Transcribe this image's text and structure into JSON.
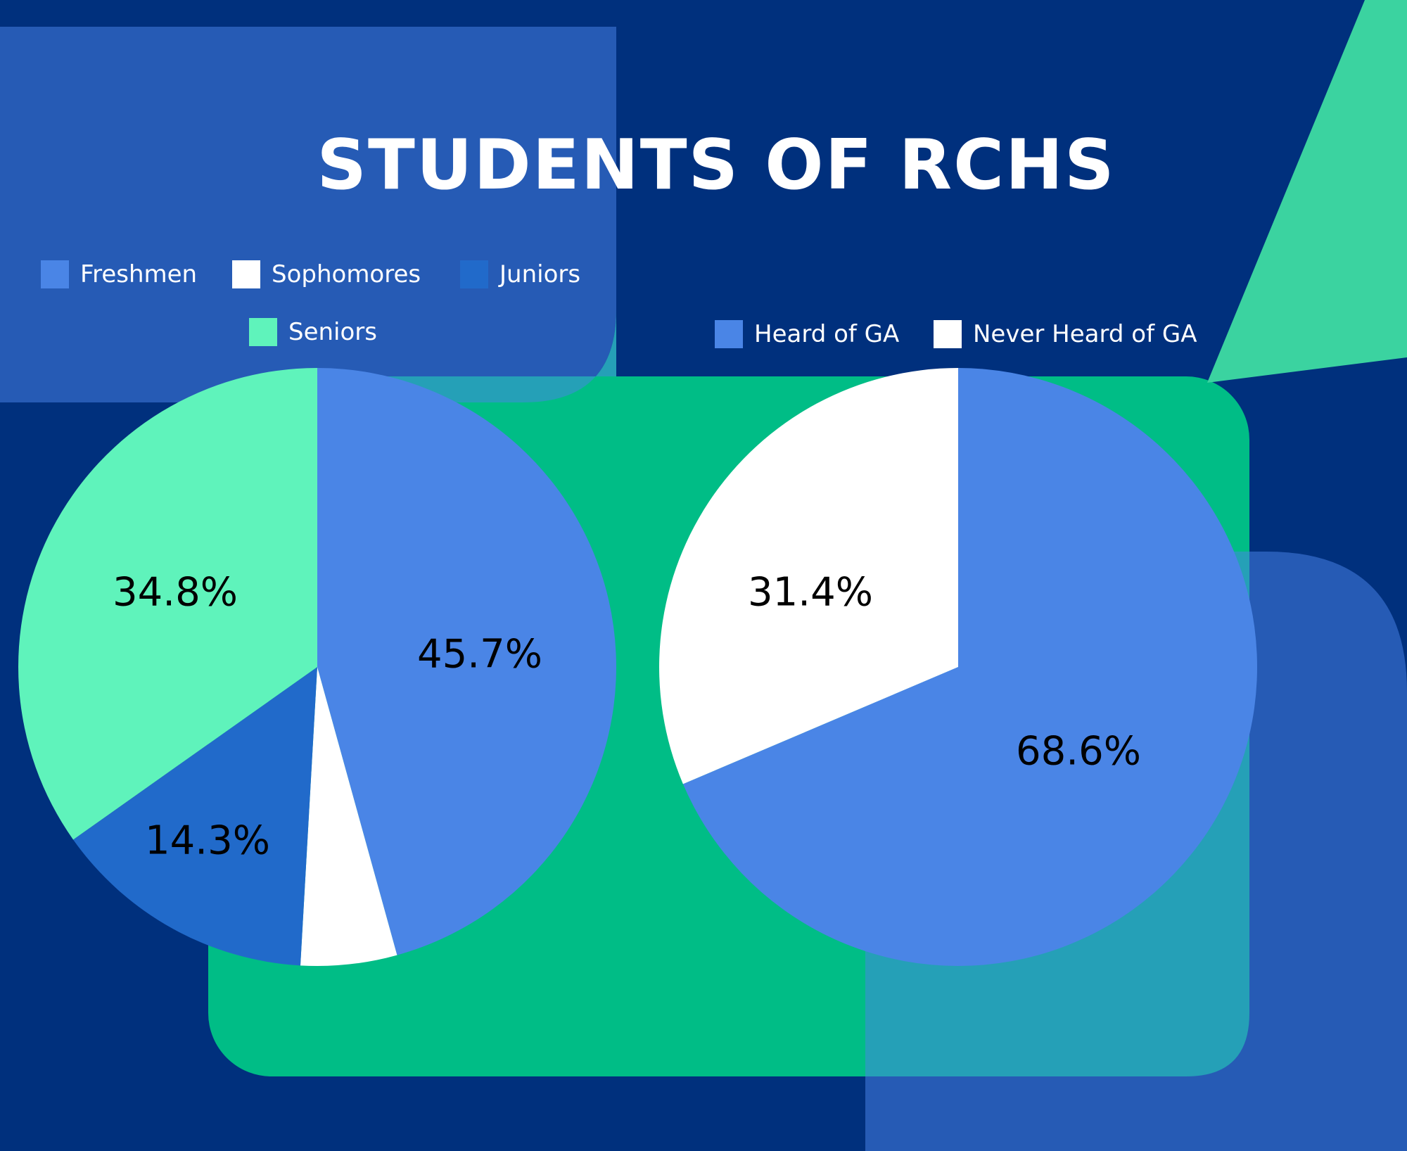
{
  "title": "STUDENTS OF RCHS",
  "colors": {
    "background": "#00307d",
    "panel_blue": "#265bb5",
    "panel_green": "#00bd86",
    "accent_mint": "#3bd3a0",
    "freshmen": "#4a85e6",
    "sophomores": "#ffffff",
    "juniors": "#216aca",
    "seniors": "#5ff3bb",
    "heard": "#4a85e6",
    "never_heard": "#ffffff"
  },
  "chart_data": [
    {
      "type": "pie",
      "legend": [
        "Freshmen",
        "Sophomores",
        "Juniors",
        "Seniors"
      ],
      "slices": [
        {
          "name": "Freshmen",
          "value": 45.7,
          "label": "45.7%",
          "color": "#4a85e6"
        },
        {
          "name": "Sophomores",
          "value": 5.2,
          "label": "",
          "color": "#ffffff"
        },
        {
          "name": "Juniors",
          "value": 14.3,
          "label": "14.3%",
          "color": "#216aca"
        },
        {
          "name": "Seniors",
          "value": 34.8,
          "label": "34.8%",
          "color": "#5ff3bb"
        }
      ]
    },
    {
      "type": "pie",
      "legend": [
        "Heard of GA",
        "Never Heard of GA"
      ],
      "slices": [
        {
          "name": "Heard of GA",
          "value": 68.6,
          "label": "68.6%",
          "color": "#4a85e6"
        },
        {
          "name": "Never Heard of GA",
          "value": 31.4,
          "label": "31.4%",
          "color": "#ffffff"
        }
      ]
    }
  ]
}
